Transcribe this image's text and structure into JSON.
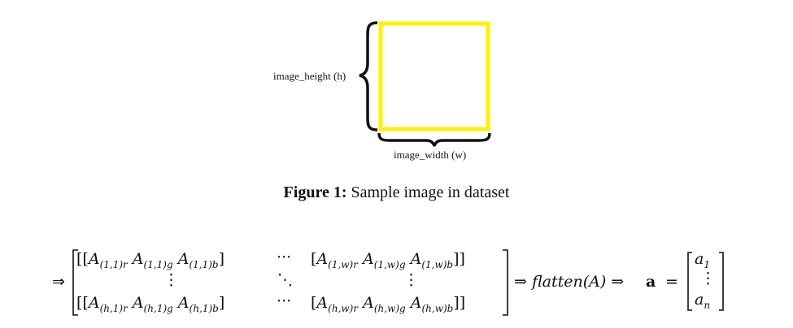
{
  "figure": {
    "height_label": "image_height (h)",
    "width_label": "image_width (w)",
    "caption_prefix": "Figure 1:",
    "caption_text": "Sample image in dataset",
    "image_border_color": "#FFF200",
    "brace_color": "#111111"
  },
  "equation": {
    "lead_arrow": "⇒",
    "row1": {
      "left_entries": [
        "A",
        "A",
        "A"
      ],
      "left_subs": [
        "(1,1)r",
        "(1,1)g",
        "(1,1)b"
      ],
      "dots": "···",
      "right_entries": [
        "A",
        "A",
        "A"
      ],
      "right_subs": [
        "(1,w)r",
        "(1,w)g",
        "(1,w)b"
      ]
    },
    "row2": {
      "vdots_left": "⋮",
      "ddots": "⋱",
      "vdots_right": "⋮"
    },
    "row3": {
      "left_entries": [
        "A",
        "A",
        "A"
      ],
      "left_subs": [
        "(h,1)r",
        "(h,1)g",
        "(h,1)b"
      ],
      "dots": "···",
      "right_entries": [
        "A",
        "A",
        "A"
      ],
      "right_subs": [
        "(h,w)r",
        "(h,w)g",
        "(h,w)b"
      ]
    },
    "flatten_expr": "⇒ flatten(A) ⇒",
    "vector_symbol": "a",
    "equals": "=",
    "vector_top": "a",
    "vector_top_sub": "1",
    "vector_mid": "⋮",
    "vector_bottom": "a",
    "vector_bottom_sub": "n"
  }
}
